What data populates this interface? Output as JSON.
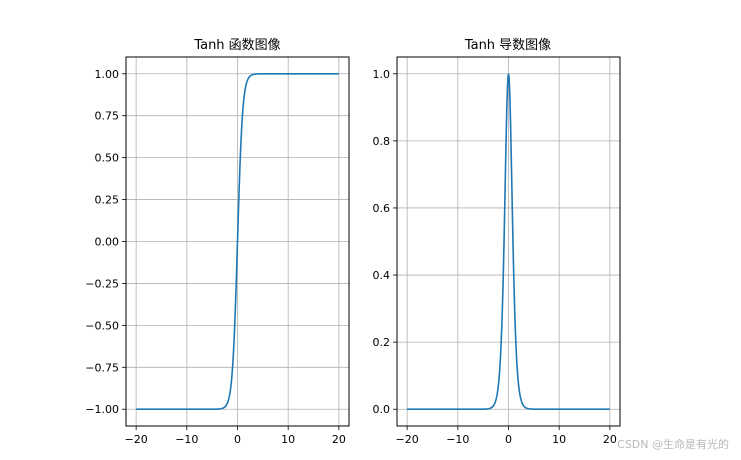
{
  "chart_data": [
    {
      "type": "line",
      "title": "Tanh 函数图像",
      "function": "tanh",
      "x_range": [
        -20,
        20
      ],
      "xlim": [
        -22,
        22
      ],
      "ylim": [
        -1.1,
        1.1
      ],
      "xticks": [
        -20,
        -10,
        0,
        10,
        20
      ],
      "xtick_labels": [
        "−20",
        "−10",
        "0",
        "10",
        "20"
      ],
      "yticks": [
        -1.0,
        -0.75,
        -0.5,
        -0.25,
        0.0,
        0.25,
        0.5,
        0.75,
        1.0
      ],
      "ytick_labels": [
        "−1.00",
        "−0.75",
        "−0.50",
        "−0.25",
        "0.00",
        "0.25",
        "0.50",
        "0.75",
        "1.00"
      ],
      "grid": true,
      "color": "#1f77b4",
      "xlabel": "",
      "ylabel": ""
    },
    {
      "type": "line",
      "title": "Tanh 导数图像",
      "function": "tanh_derivative",
      "x_range": [
        -20,
        20
      ],
      "xlim": [
        -22,
        22
      ],
      "ylim": [
        -0.05,
        1.05
      ],
      "xticks": [
        -20,
        -10,
        0,
        10,
        20
      ],
      "xtick_labels": [
        "−20",
        "−10",
        "0",
        "10",
        "20"
      ],
      "yticks": [
        0.0,
        0.2,
        0.4,
        0.6,
        0.8,
        1.0
      ],
      "ytick_labels": [
        "0.0",
        "0.2",
        "0.4",
        "0.6",
        "0.8",
        "1.0"
      ],
      "grid": true,
      "color": "#1f77b4",
      "xlabel": "",
      "ylabel": ""
    }
  ],
  "watermark": "CSDN @生命是有光的"
}
